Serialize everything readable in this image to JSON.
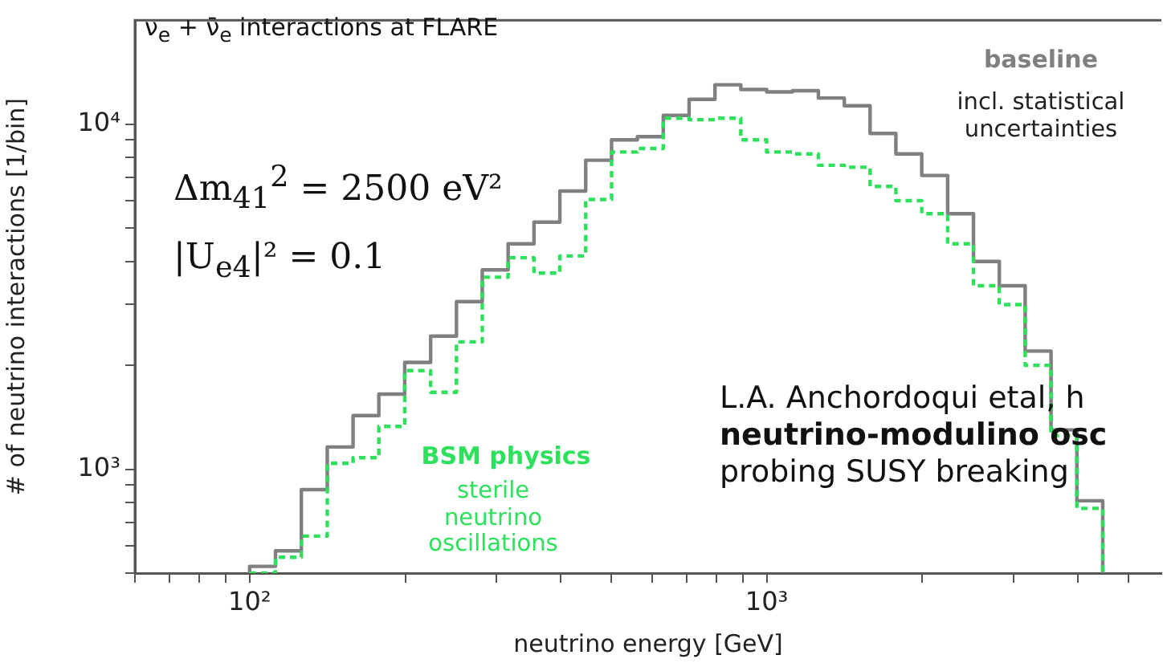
{
  "chart_data": {
    "type": "histogram",
    "title": "ν$_{e}$ + ν̄$_{e}$ interactions at FLARE",
    "xlabel": "neutrino energy [GeV]",
    "ylabel": "# of neutrino interactions [1/bin]",
    "bins": [
      100,
      112.2,
      125.9,
      141.3,
      158.5,
      177.8,
      199.5,
      223.9,
      251.2,
      281.8,
      316.2,
      354.8,
      398.1,
      446.7,
      501.2,
      562.3,
      631,
      707.9,
      794.3,
      891.3,
      1000,
      1122,
      1259,
      1413,
      1585,
      1778,
      1995,
      2239,
      2512,
      2818,
      3162,
      3548,
      3981,
      4467
    ],
    "series": [
      {
        "name": "baseline",
        "color": "#808080",
        "line_style": "solid",
        "values": [
          523,
          580,
          873,
          1160,
          1430,
          1650,
          2040,
          2430,
          3060,
          3780,
          4500,
          5200,
          6400,
          7860,
          9000,
          9200,
          10600,
          11800,
          13000,
          12600,
          12400,
          12500,
          11900,
          11300,
          9400,
          8200,
          7100,
          5500,
          4000,
          3400,
          2200,
          1300,
          810
        ]
      },
      {
        "name": "BSM physics",
        "color": "#2ee05c",
        "line_style": "dashed",
        "values": [
          500,
          556,
          640,
          1040,
          1080,
          1330,
          1930,
          1670,
          2340,
          3600,
          4100,
          3700,
          4150,
          6050,
          8300,
          8500,
          10400,
          10300,
          10400,
          9000,
          8300,
          8200,
          7600,
          7500,
          6600,
          6000,
          5500,
          4500,
          3400,
          3000,
          2000,
          1250,
          770
        ]
      }
    ],
    "annotations": [
      "incl. statistical uncertainties",
      "Δm$_{41}$$^{2}$ = 2500 eV²",
      "|U$_{e4}$|² = 0.1",
      "sterile neutrino oscillations",
      "L.A. Anchordoqui etal, h",
      "neutrino-modulino osc",
      "probing SUSY breaking"
    ],
    "log": "xy",
    "legend": false,
    "xlim": [
      60,
      5800
    ],
    "xticks": [
      {
        "value": 60,
        "label": null
      },
      {
        "value": 70,
        "label": null
      },
      {
        "value": 80,
        "label": null
      },
      {
        "value": 90,
        "label": null
      },
      {
        "value": 100,
        "label": "10²"
      },
      {
        "value": 200,
        "label": null
      },
      {
        "value": 300,
        "label": null
      },
      {
        "value": 400,
        "label": null
      },
      {
        "value": 500,
        "label": null
      },
      {
        "value": 600,
        "label": null
      },
      {
        "value": 700,
        "label": null
      },
      {
        "value": 800,
        "label": null
      },
      {
        "value": 900,
        "label": null
      },
      {
        "value": 1000,
        "label": "10³"
      },
      {
        "value": 2000,
        "label": null
      },
      {
        "value": 3000,
        "label": null
      },
      {
        "value": 4000,
        "label": null
      },
      {
        "value": 5000,
        "label": null
      }
    ],
    "ylim": [
      500,
      20000
    ],
    "yticks": [
      {
        "value": 500,
        "label": null
      },
      {
        "value": 600,
        "label": null
      },
      {
        "value": 700,
        "label": null
      },
      {
        "value": 800,
        "label": null
      },
      {
        "value": 900,
        "label": null
      },
      {
        "value": 1000,
        "label": "10³"
      },
      {
        "value": 2000,
        "label": null
      },
      {
        "value": 3000,
        "label": null
      },
      {
        "value": 4000,
        "label": null
      },
      {
        "value": 5000,
        "label": null
      },
      {
        "value": 6000,
        "label": null
      },
      {
        "value": 7000,
        "label": null
      },
      {
        "value": 8000,
        "label": null
      },
      {
        "value": 9000,
        "label": null
      },
      {
        "value": 10000,
        "label": "10⁴"
      }
    ]
  }
}
